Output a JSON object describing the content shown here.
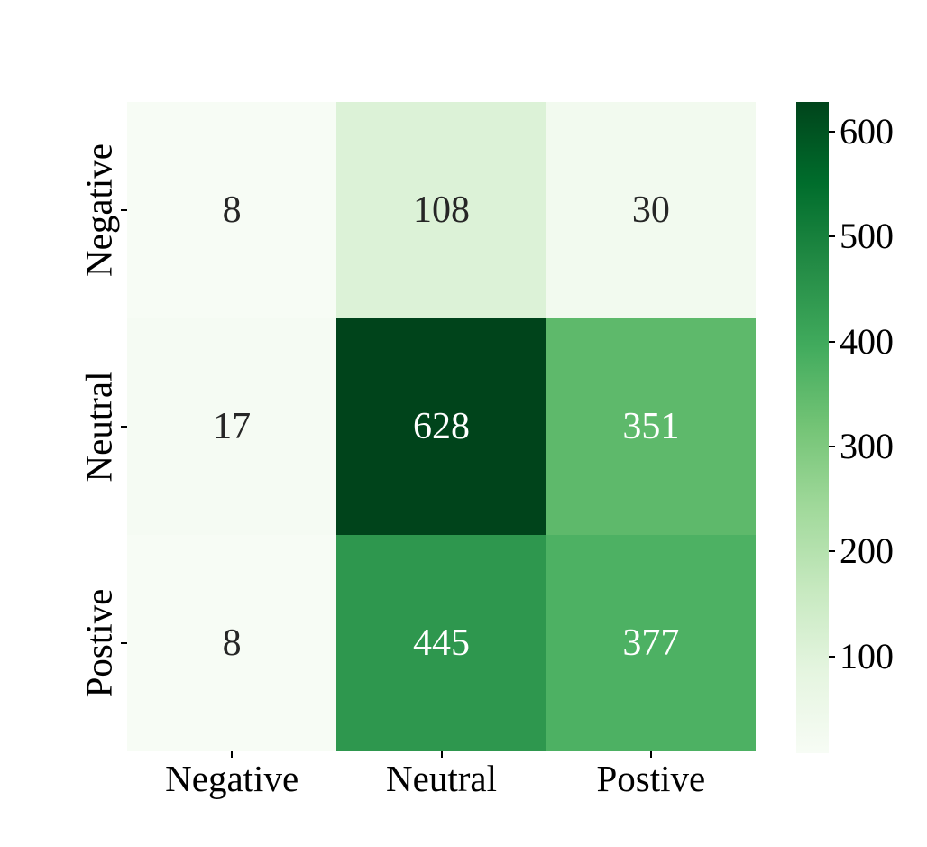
{
  "figure": {
    "kind": "confusion-matrix-heatmap",
    "background_color": "#ffffff",
    "axis_text_color": "#000000"
  },
  "chart_data": {
    "type": "heatmap",
    "title": "",
    "xlabel": "",
    "ylabel": "",
    "x_labels": [
      "Negative",
      "Neutral",
      "Postive"
    ],
    "y_labels": [
      "Negative",
      "Neutral",
      "Postive"
    ],
    "values": [
      [
        8,
        108,
        30
      ],
      [
        17,
        628,
        351
      ],
      [
        8,
        445,
        377
      ]
    ],
    "vmin": 8,
    "vmax": 628,
    "colormap_name": "Greens",
    "colormap_stops": [
      "#f7fcf5",
      "#e5f5e0",
      "#c7e9c0",
      "#a1d99b",
      "#74c476",
      "#41ab5d",
      "#238b45",
      "#006d2c",
      "#00441b"
    ],
    "colorbar": {
      "position": "right",
      "ticks": [
        100,
        200,
        300,
        400,
        500,
        600
      ]
    },
    "annotation_colors": {
      "on_dark": "#ffffff",
      "on_light": "#262626"
    },
    "grid": false,
    "legend_position": "right-colorbar"
  }
}
